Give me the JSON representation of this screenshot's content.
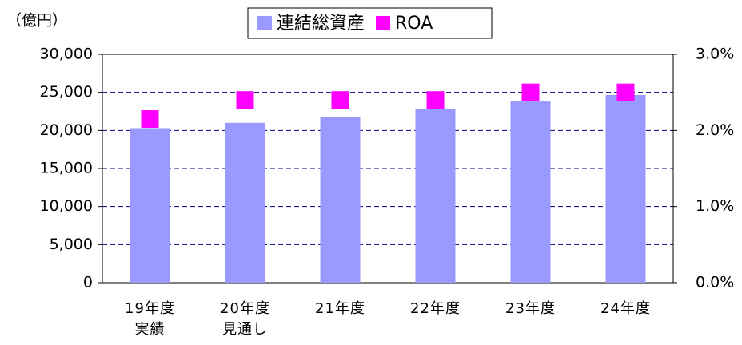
{
  "chart_data": {
    "type": "bar",
    "y_unit": "（億円）",
    "categories": [
      "19年度\n実績",
      "20年度\n見通し",
      "21年度",
      "22年度",
      "23年度",
      "24年度"
    ],
    "series": [
      {
        "name": "連結総資産",
        "color": "#9999ff",
        "values": [
          20300,
          21000,
          21800,
          22850,
          23800,
          24650
        ]
      },
      {
        "name": "ROA",
        "type": "scatter",
        "axis": "y2",
        "color": "#ff00ff",
        "values": [
          2.15,
          2.4,
          2.4,
          2.4,
          2.5,
          2.5
        ]
      }
    ],
    "ylim": [
      0,
      30000
    ],
    "yticks": [
      0,
      {
        "value": 5000,
        "label": "5,000"
      },
      {
        "value": 10000,
        "label": "10,000"
      },
      {
        "value": 15000,
        "label": "15,000"
      },
      {
        "value": 20000,
        "label": "20,000"
      },
      {
        "value": 25000,
        "label": "25,000"
      },
      {
        "value": 30000,
        "label": "30,000"
      }
    ],
    "y2lim": [
      0,
      3
    ],
    "y2ticks": [
      {
        "value": 0,
        "label": "0.0%"
      },
      {
        "value": 1,
        "label": "1.0%"
      },
      {
        "value": 2,
        "label": "2.0%"
      },
      {
        "value": 3,
        "label": "3.0%"
      }
    ],
    "grid": true,
    "legend": "top"
  }
}
